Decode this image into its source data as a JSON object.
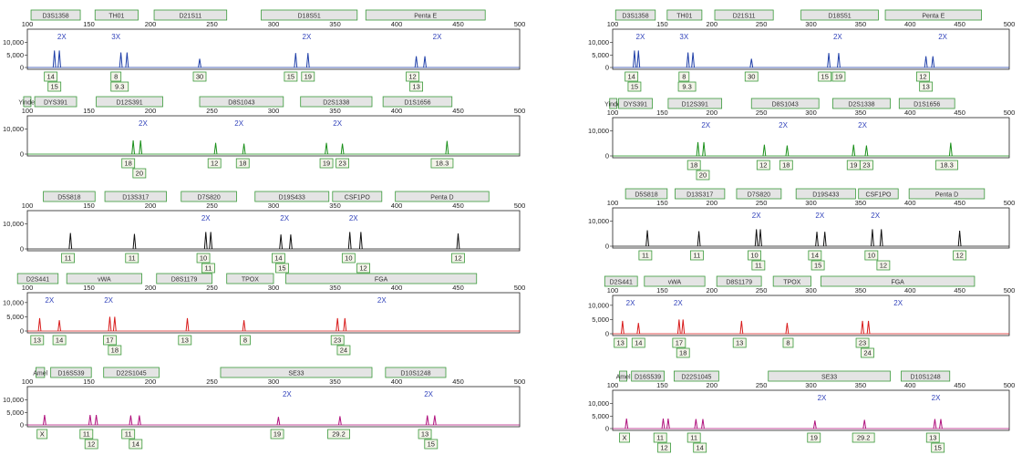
{
  "chart_data": [
    {
      "type": "line",
      "title": "",
      "xlim": [
        100,
        500
      ],
      "ylim": [
        0,
        10000
      ],
      "color": "#1f3fa8",
      "x_ticks": [
        100,
        150,
        200,
        250,
        300,
        350,
        400,
        450,
        500
      ],
      "y_ticks": [
        0,
        5000,
        10000
      ],
      "y_tick_labels": [
        "0",
        "5,000",
        "10,000"
      ],
      "loci": [
        {
          "name": "D3S1358",
          "start": 103,
          "end": 143
        },
        {
          "name": "TH01",
          "start": 155,
          "end": 190
        },
        {
          "name": "D21S11",
          "start": 203,
          "end": 262
        },
        {
          "name": "D18S51",
          "start": 290,
          "end": 368
        },
        {
          "name": "Penta E",
          "start": 375,
          "end": 472
        }
      ],
      "peaks": [
        {
          "x": 122,
          "y": 6800
        },
        {
          "x": 126,
          "y": 6800
        },
        {
          "x": 176,
          "y": 6000
        },
        {
          "x": 181,
          "y": 6000
        },
        {
          "x": 240,
          "y": 3500
        },
        {
          "x": 318,
          "y": 5800
        },
        {
          "x": 328,
          "y": 5800
        },
        {
          "x": 416,
          "y": 4500
        },
        {
          "x": 423,
          "y": 4500
        }
      ],
      "annotations": [
        {
          "text": "2X",
          "x": 128
        },
        {
          "text": "3X",
          "x": 172
        },
        {
          "text": "2X",
          "x": 327
        },
        {
          "text": "2X",
          "x": 433
        }
      ],
      "allele_labels": [
        {
          "text": "14",
          "x": 119,
          "row": 0
        },
        {
          "text": "15",
          "x": 122,
          "row": 1
        },
        {
          "text": "8",
          "x": 172,
          "row": 0
        },
        {
          "text": "9.3",
          "x": 175,
          "row": 1
        },
        {
          "text": "30",
          "x": 240,
          "row": 0
        },
        {
          "text": "15",
          "x": 314,
          "row": 0
        },
        {
          "text": "19",
          "x": 328,
          "row": 0
        },
        {
          "text": "12",
          "x": 413,
          "row": 0
        },
        {
          "text": "13",
          "x": 416,
          "row": 1
        }
      ]
    },
    {
      "type": "line",
      "title": "",
      "xlim": [
        100,
        500
      ],
      "ylim": [
        0,
        10000
      ],
      "color": "#1a8f1a",
      "x_ticks": [
        100,
        150,
        200,
        250,
        300,
        350,
        400,
        450,
        500
      ],
      "y_ticks": [
        0,
        10000
      ],
      "y_tick_labels": [
        "0",
        "10,000"
      ],
      "loci": [
        {
          "name": "Yindel",
          "start": 97,
          "end": 102
        },
        {
          "name": "DYS391",
          "start": 106,
          "end": 140
        },
        {
          "name": "D12S391",
          "start": 156,
          "end": 210
        },
        {
          "name": "D8S1043",
          "start": 240,
          "end": 308
        },
        {
          "name": "D2S1338",
          "start": 322,
          "end": 380
        },
        {
          "name": "D1S1656",
          "start": 389,
          "end": 445
        }
      ],
      "peaks": [
        {
          "x": 186,
          "y": 5500
        },
        {
          "x": 192,
          "y": 5500
        },
        {
          "x": 253,
          "y": 4500
        },
        {
          "x": 276,
          "y": 4200
        },
        {
          "x": 343,
          "y": 4500
        },
        {
          "x": 356,
          "y": 4200
        },
        {
          "x": 441,
          "y": 5300
        }
      ],
      "annotations": [
        {
          "text": "2X",
          "x": 194
        },
        {
          "text": "2X",
          "x": 272
        },
        {
          "text": "2X",
          "x": 352
        }
      ],
      "allele_labels": [
        {
          "text": "18",
          "x": 182,
          "row": 0
        },
        {
          "text": "20",
          "x": 191,
          "row": 1
        },
        {
          "text": "12",
          "x": 252,
          "row": 0
        },
        {
          "text": "18",
          "x": 275,
          "row": 0
        },
        {
          "text": "19",
          "x": 343,
          "row": 0
        },
        {
          "text": "23",
          "x": 356,
          "row": 0
        },
        {
          "text": "18.3",
          "x": 437,
          "row": 0
        }
      ]
    },
    {
      "type": "line",
      "title": "",
      "xlim": [
        100,
        500
      ],
      "ylim": [
        0,
        10000
      ],
      "color": "#111111",
      "x_ticks": [
        100,
        150,
        200,
        250,
        300,
        350,
        400,
        450,
        500
      ],
      "y_ticks": [
        0,
        10000
      ],
      "y_tick_labels": [
        "0",
        "10,000"
      ],
      "loci": [
        {
          "name": "D5S818",
          "start": 113,
          "end": 155
        },
        {
          "name": "D13S317",
          "start": 163,
          "end": 213
        },
        {
          "name": "D7S820",
          "start": 225,
          "end": 270
        },
        {
          "name": "D19S433",
          "start": 285,
          "end": 345
        },
        {
          "name": "CSF1PO",
          "start": 348,
          "end": 388
        },
        {
          "name": "Penta D",
          "start": 399,
          "end": 475
        }
      ],
      "peaks": [
        {
          "x": 135,
          "y": 6400
        },
        {
          "x": 187,
          "y": 6000
        },
        {
          "x": 245,
          "y": 6800
        },
        {
          "x": 249,
          "y": 6800
        },
        {
          "x": 306,
          "y": 5800
        },
        {
          "x": 314,
          "y": 5800
        },
        {
          "x": 362,
          "y": 6800
        },
        {
          "x": 371,
          "y": 6800
        },
        {
          "x": 450,
          "y": 6200
        }
      ],
      "annotations": [
        {
          "text": "2X",
          "x": 245
        },
        {
          "text": "2X",
          "x": 309
        },
        {
          "text": "2X",
          "x": 365
        }
      ],
      "allele_labels": [
        {
          "text": "11",
          "x": 133,
          "row": 0
        },
        {
          "text": "11",
          "x": 185,
          "row": 0
        },
        {
          "text": "10",
          "x": 243,
          "row": 0
        },
        {
          "text": "11",
          "x": 247,
          "row": 1
        },
        {
          "text": "14",
          "x": 304,
          "row": 0
        },
        {
          "text": "15",
          "x": 307,
          "row": 1
        },
        {
          "text": "10",
          "x": 361,
          "row": 0
        },
        {
          "text": "12",
          "x": 373,
          "row": 1
        },
        {
          "text": "12",
          "x": 450,
          "row": 0
        }
      ]
    },
    {
      "type": "line",
      "title": "",
      "xlim": [
        100,
        500
      ],
      "ylim": [
        0,
        10000
      ],
      "color": "#d81b1b",
      "x_ticks": [
        100,
        150,
        200,
        250,
        300,
        350,
        400,
        450,
        500
      ],
      "y_ticks": [
        0,
        5000,
        10000
      ],
      "y_tick_labels": [
        "0",
        "5,000",
        "10,000"
      ],
      "loci": [
        {
          "name": "D2S441",
          "start": 92,
          "end": 125
        },
        {
          "name": "vWA",
          "start": 132,
          "end": 193
        },
        {
          "name": "D8S1179",
          "start": 205,
          "end": 250
        },
        {
          "name": "TPOX",
          "start": 262,
          "end": 300
        },
        {
          "name": "FGA",
          "start": 310,
          "end": 465
        }
      ],
      "peaks": [
        {
          "x": 110,
          "y": 4500
        },
        {
          "x": 126,
          "y": 3800
        },
        {
          "x": 167,
          "y": 5000
        },
        {
          "x": 171,
          "y": 5000
        },
        {
          "x": 230,
          "y": 4500
        },
        {
          "x": 276,
          "y": 3800
        },
        {
          "x": 352,
          "y": 4500
        },
        {
          "x": 358,
          "y": 4500
        }
      ],
      "annotations": [
        {
          "text": "2X",
          "x": 118
        },
        {
          "text": "2X",
          "x": 166
        },
        {
          "text": "2X",
          "x": 388
        }
      ],
      "allele_labels": [
        {
          "text": "13",
          "x": 108,
          "row": 0
        },
        {
          "text": "14",
          "x": 126,
          "row": 0
        },
        {
          "text": "17",
          "x": 167,
          "row": 0
        },
        {
          "text": "18",
          "x": 171,
          "row": 1
        },
        {
          "text": "13",
          "x": 228,
          "row": 0
        },
        {
          "text": "8",
          "x": 277,
          "row": 0
        },
        {
          "text": "23",
          "x": 352,
          "row": 0
        },
        {
          "text": "24",
          "x": 357,
          "row": 1
        }
      ]
    },
    {
      "type": "line",
      "title": "",
      "xlim": [
        100,
        500
      ],
      "ylim": [
        0,
        10000
      ],
      "color": "#b0127d",
      "x_ticks": [
        100,
        150,
        200,
        250,
        300,
        350,
        400,
        450,
        500
      ],
      "y_ticks": [
        0,
        5000,
        10000
      ],
      "y_tick_labels": [
        "0",
        "5,000",
        "10,000"
      ],
      "loci": [
        {
          "name": "Amel",
          "start": 107,
          "end": 114
        },
        {
          "name": "D16S539",
          "start": 119,
          "end": 152
        },
        {
          "name": "D22S1045",
          "start": 162,
          "end": 207
        },
        {
          "name": "SE33",
          "start": 257,
          "end": 380
        },
        {
          "name": "D10S1248",
          "start": 391,
          "end": 440
        }
      ],
      "peaks": [
        {
          "x": 114,
          "y": 4000
        },
        {
          "x": 151,
          "y": 4000
        },
        {
          "x": 156,
          "y": 4000
        },
        {
          "x": 184,
          "y": 3800
        },
        {
          "x": 191,
          "y": 3800
        },
        {
          "x": 304,
          "y": 3200
        },
        {
          "x": 354,
          "y": 3500
        },
        {
          "x": 425,
          "y": 3800
        },
        {
          "x": 431,
          "y": 3800
        }
      ],
      "annotations": [
        {
          "text": "2X",
          "x": 311
        },
        {
          "text": "2X",
          "x": 426
        }
      ],
      "allele_labels": [
        {
          "text": "X",
          "x": 112,
          "row": 0
        },
        {
          "text": "11",
          "x": 148,
          "row": 0
        },
        {
          "text": "12",
          "x": 152,
          "row": 1
        },
        {
          "text": "11",
          "x": 182,
          "row": 0
        },
        {
          "text": "14",
          "x": 188,
          "row": 1
        },
        {
          "text": "19",
          "x": 303,
          "row": 0
        },
        {
          "text": "29.2",
          "x": 353,
          "row": 0
        },
        {
          "text": "13",
          "x": 423,
          "row": 0
        },
        {
          "text": "15",
          "x": 428,
          "row": 1
        }
      ]
    }
  ]
}
